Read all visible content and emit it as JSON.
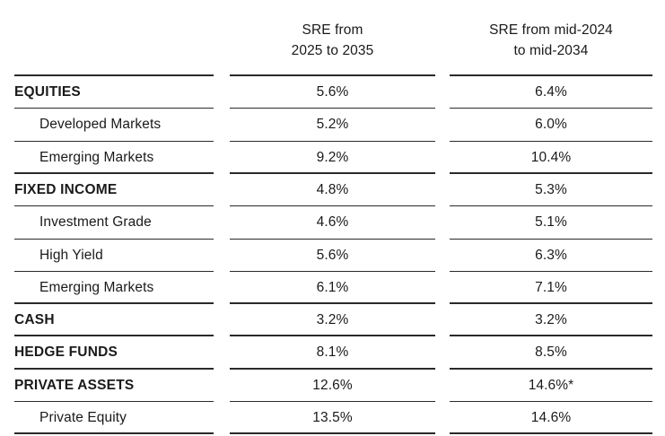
{
  "table": {
    "headers": {
      "col1": [
        "SRE from",
        "2025 to 2035"
      ],
      "col2": [
        "SRE from mid-2024",
        "to mid-2034"
      ]
    },
    "rows": [
      {
        "label": "EQUITIES",
        "type": "category",
        "v1": "5.6%",
        "v2": "6.4%"
      },
      {
        "label": "Developed Markets",
        "type": "sub",
        "v1": "5.2%",
        "v2": "6.0%"
      },
      {
        "label": "Emerging Markets",
        "type": "sub",
        "v1": "9.2%",
        "v2": "10.4%"
      },
      {
        "label": "FIXED INCOME",
        "type": "category",
        "v1": "4.8%",
        "v2": "5.3%"
      },
      {
        "label": "Investment Grade",
        "type": "sub",
        "v1": "4.6%",
        "v2": "5.1%"
      },
      {
        "label": "High Yield",
        "type": "sub",
        "v1": "5.6%",
        "v2": "6.3%"
      },
      {
        "label": "Emerging Markets",
        "type": "sub",
        "v1": "6.1%",
        "v2": "7.1%"
      },
      {
        "label": "CASH",
        "type": "category",
        "v1": "3.2%",
        "v2": "3.2%"
      },
      {
        "label": "HEDGE FUNDS",
        "type": "category",
        "v1": "8.1%",
        "v2": "8.5%"
      },
      {
        "label": "PRIVATE ASSETS",
        "type": "category",
        "v1": "12.6%",
        "v2": "14.6%*"
      },
      {
        "label": "Private Equity",
        "type": "sub",
        "v1": "13.5%",
        "v2": "14.6%"
      }
    ]
  },
  "colors": {
    "text": "#1a1a1a",
    "rule": "#2a2a2a",
    "background": "#ffffff"
  }
}
